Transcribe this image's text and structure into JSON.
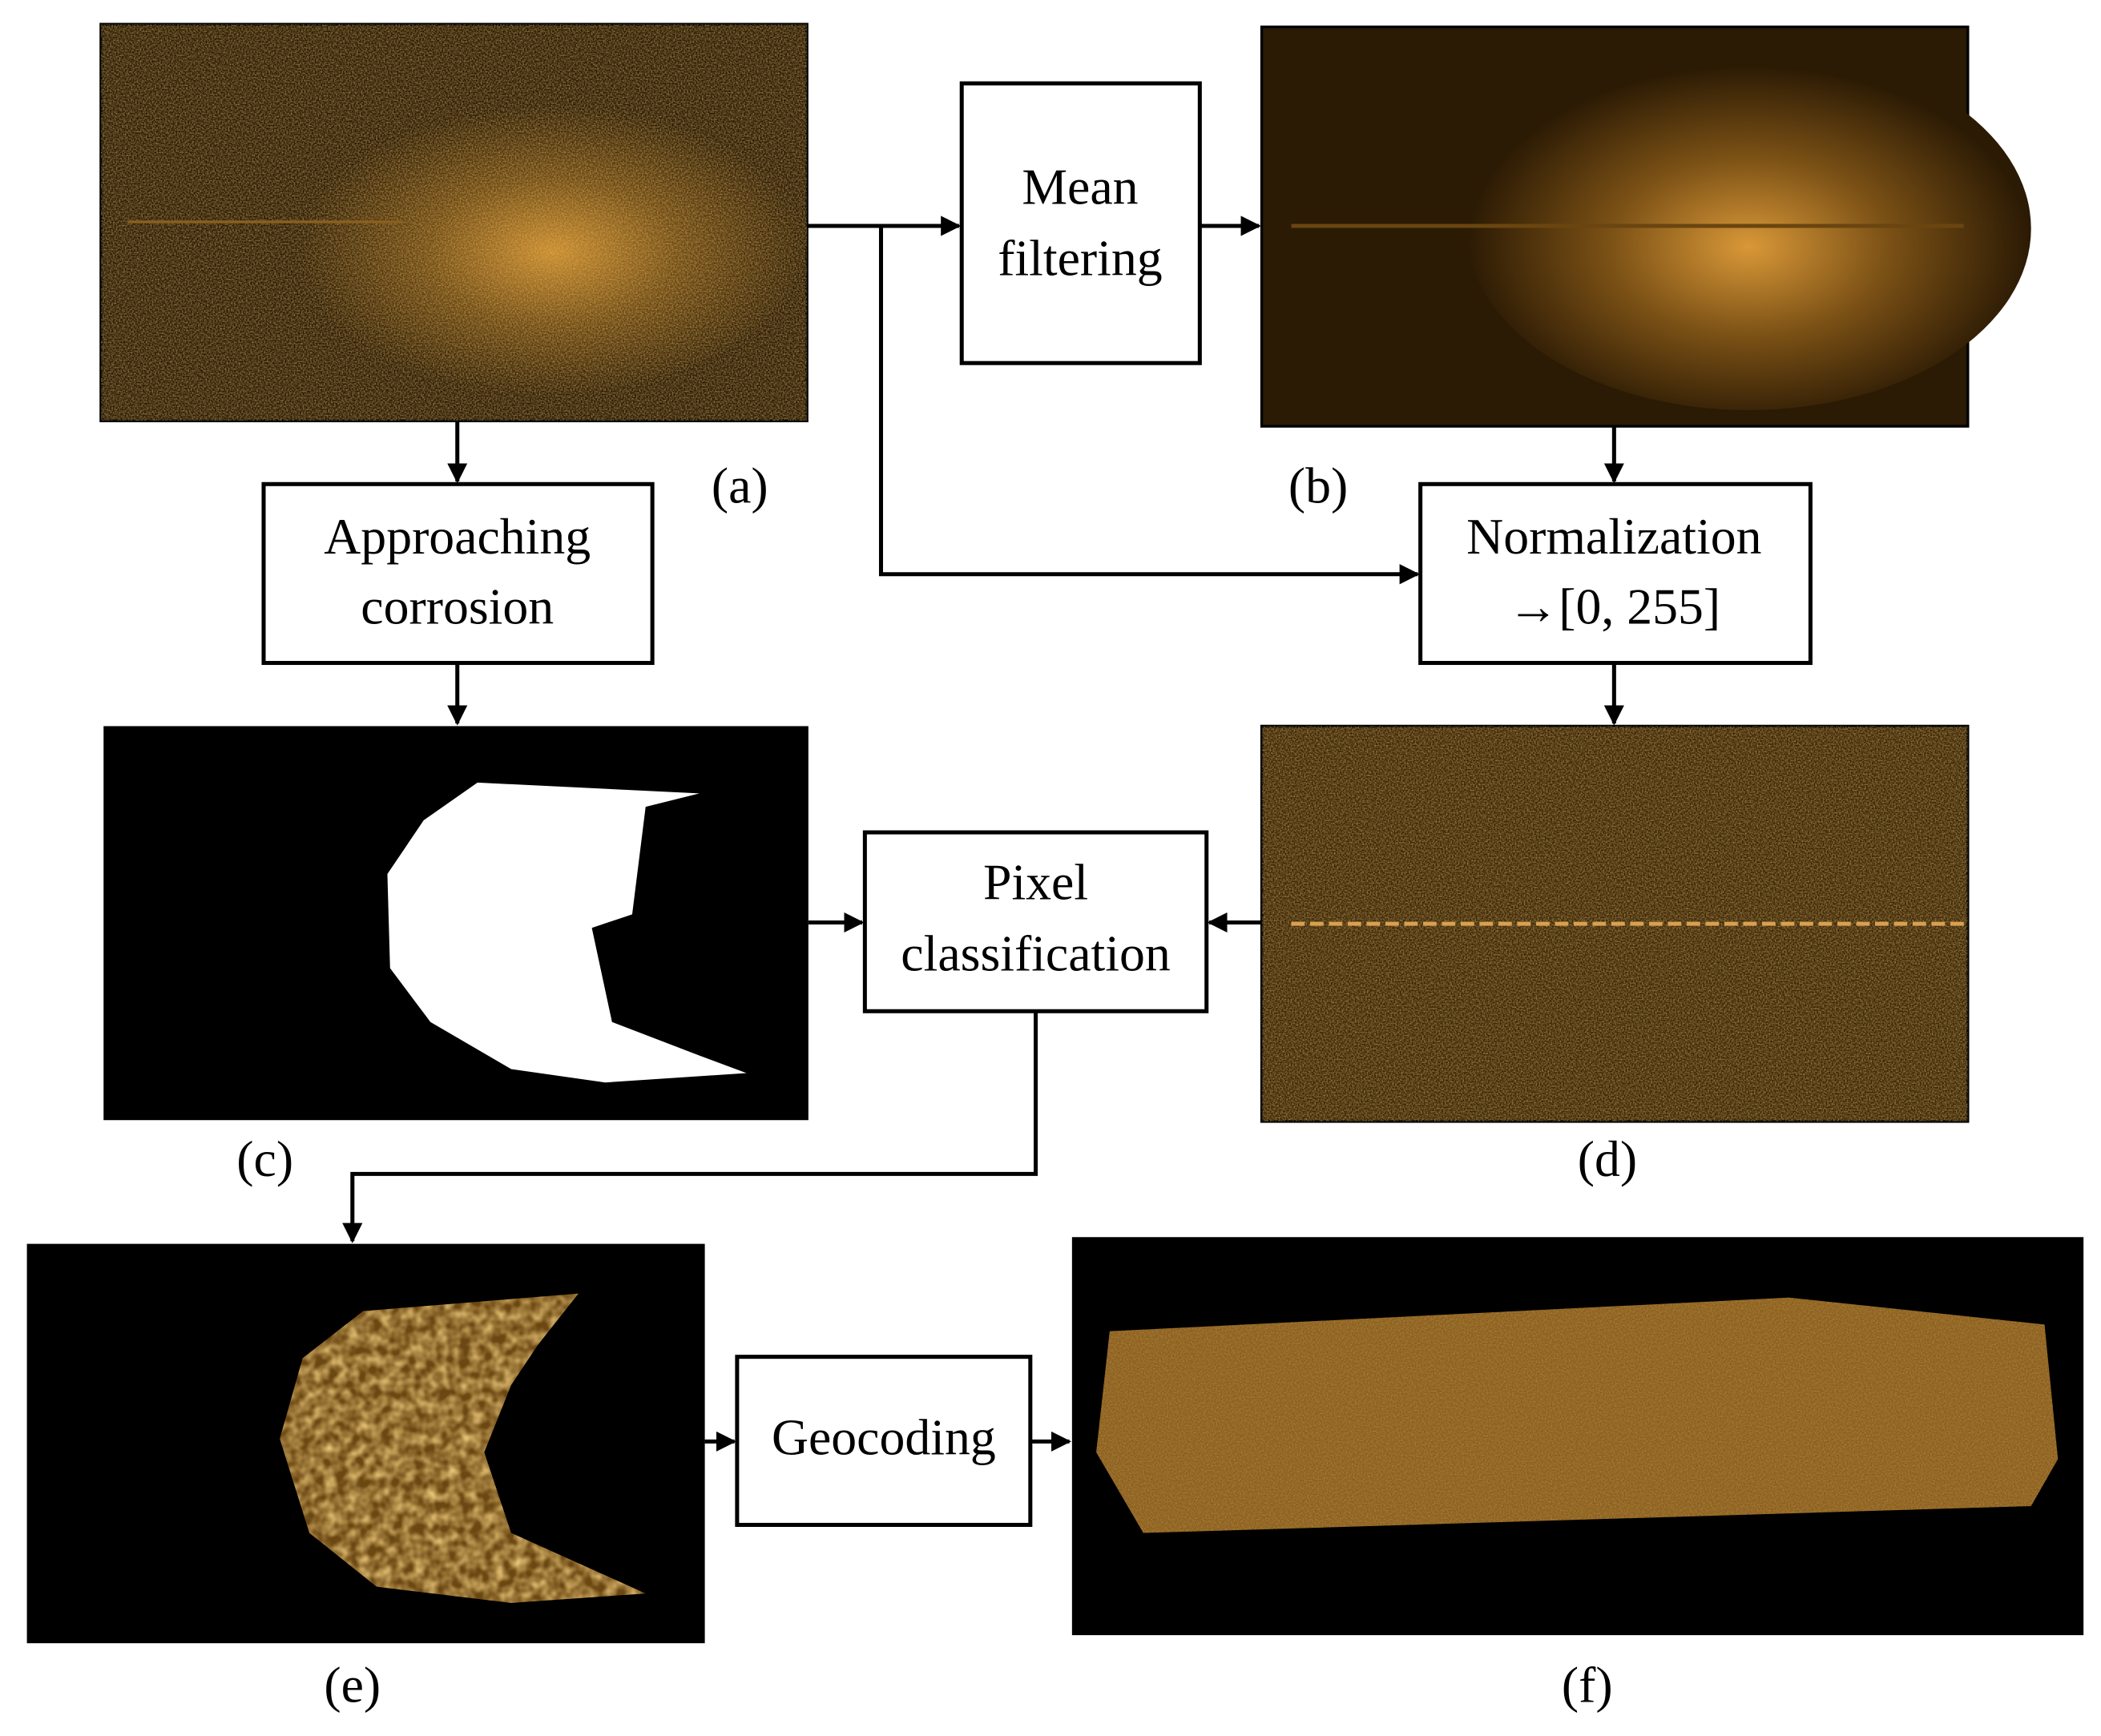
{
  "panel_labels": [
    "(a)",
    "(b)",
    "(c)",
    "(d)",
    "(e)",
    "(f)"
  ],
  "boxes": [
    {
      "lines": [
        "Mean",
        "filtering"
      ]
    },
    {
      "lines": [
        "Approaching",
        "corrosion"
      ]
    },
    {
      "lines": [
        "Normalization",
        "→[0, 255]"
      ]
    },
    {
      "lines": [
        "Pixel",
        "classification"
      ]
    },
    {
      "lines": [
        "Geocoding"
      ]
    }
  ]
}
